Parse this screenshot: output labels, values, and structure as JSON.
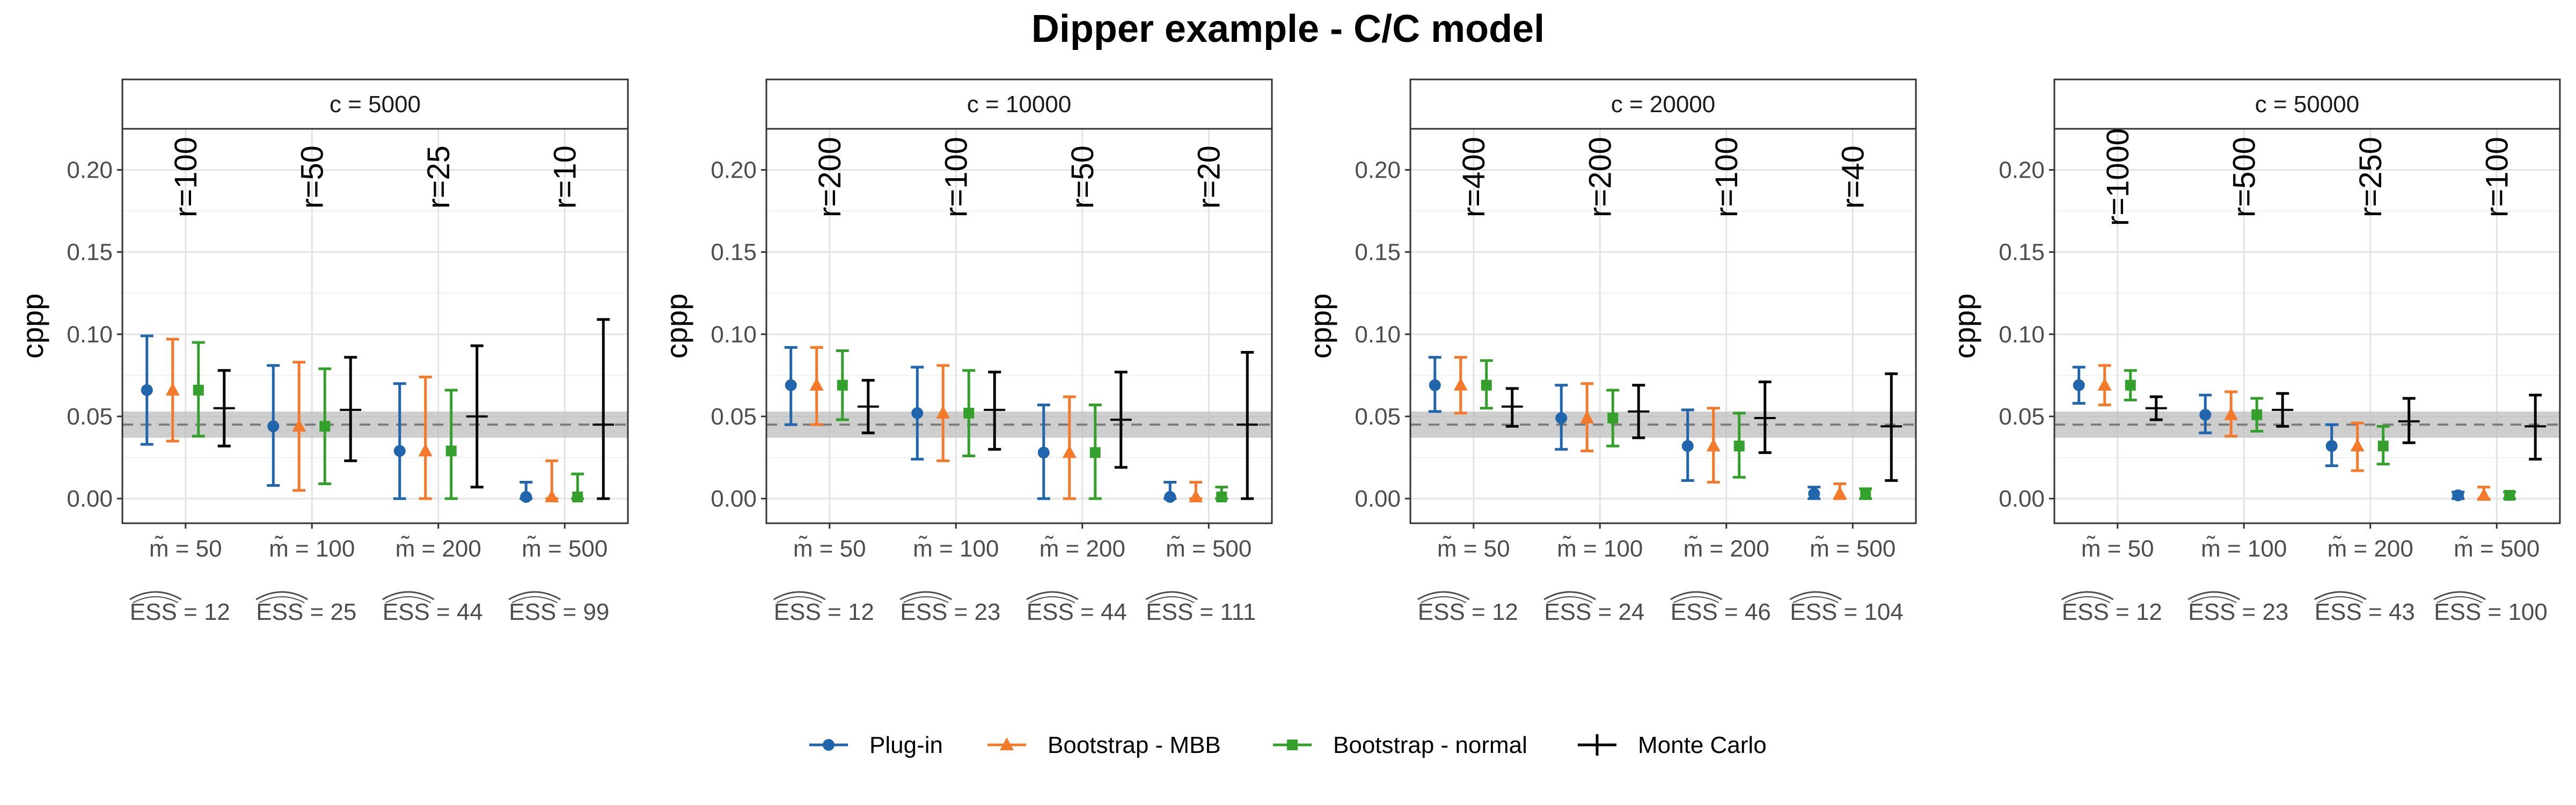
{
  "chart_data": {
    "type": "errorbar",
    "title": "Dipper example - C/C model",
    "ylabel": "cppp",
    "ylim": [
      -0.015,
      0.225
    ],
    "yticks": [
      "0.00",
      "0.05",
      "0.10",
      "0.15",
      "0.20"
    ],
    "reference_line": {
      "value": 0.045,
      "band": [
        0.037,
        0.053
      ],
      "style": "dashed"
    },
    "grid": true,
    "legend_position": "bottom",
    "series": [
      {
        "name": "Plug-in",
        "color": "#2166ac",
        "marker": "circle"
      },
      {
        "name": "Bootstrap - MBB",
        "color": "#f4792a",
        "marker": "triangle"
      },
      {
        "name": "Bootstrap - normal",
        "color": "#33a02c",
        "marker": "square"
      },
      {
        "name": "Monte Carlo",
        "color": "#000000",
        "marker": "plus"
      }
    ],
    "panels": [
      {
        "strip": "c = 5000",
        "x_labels": [
          "m̃ = 50",
          "m̃ = 100",
          "m̃ = 200",
          "m̃ = 500"
        ],
        "ess_labels": [
          "ESS = 12",
          "ESS = 25",
          "ESS = 44",
          "ESS = 99"
        ],
        "r_labels": [
          "r=100",
          "r=50",
          "r=25",
          "r=10"
        ],
        "groups": [
          [
            [
              0.066,
              0.033,
              0.099
            ],
            [
              0.066,
              0.035,
              0.097
            ],
            [
              0.066,
              0.038,
              0.095
            ],
            [
              0.055,
              0.032,
              0.078
            ]
          ],
          [
            [
              0.044,
              0.008,
              0.081
            ],
            [
              0.044,
              0.005,
              0.083
            ],
            [
              0.044,
              0.009,
              0.079
            ],
            [
              0.054,
              0.023,
              0.086
            ]
          ],
          [
            [
              0.029,
              0.0,
              0.07
            ],
            [
              0.029,
              0.0,
              0.074
            ],
            [
              0.029,
              0.0,
              0.066
            ],
            [
              0.05,
              0.007,
              0.093
            ]
          ],
          [
            [
              0.001,
              0.0,
              0.01
            ],
            [
              0.001,
              0.0,
              0.023
            ],
            [
              0.001,
              0.0,
              0.015
            ],
            [
              0.045,
              0.0,
              0.109
            ]
          ]
        ]
      },
      {
        "strip": "c = 10000",
        "x_labels": [
          "m̃ = 50",
          "m̃ = 100",
          "m̃ = 200",
          "m̃ = 500"
        ],
        "ess_labels": [
          "ESS = 12",
          "ESS = 23",
          "ESS = 44",
          "ESS = 111"
        ],
        "r_labels": [
          "r=200",
          "r=100",
          "r=50",
          "r=20"
        ],
        "groups": [
          [
            [
              0.069,
              0.045,
              0.092
            ],
            [
              0.069,
              0.045,
              0.092
            ],
            [
              0.069,
              0.048,
              0.09
            ],
            [
              0.056,
              0.04,
              0.072
            ]
          ],
          [
            [
              0.052,
              0.024,
              0.08
            ],
            [
              0.052,
              0.023,
              0.081
            ],
            [
              0.052,
              0.026,
              0.078
            ],
            [
              0.054,
              0.03,
              0.077
            ]
          ],
          [
            [
              0.028,
              0.0,
              0.057
            ],
            [
              0.028,
              0.0,
              0.062
            ],
            [
              0.028,
              0.0,
              0.057
            ],
            [
              0.048,
              0.019,
              0.077
            ]
          ],
          [
            [
              0.001,
              0.0,
              0.01
            ],
            [
              0.001,
              0.0,
              0.01
            ],
            [
              0.001,
              0.0,
              0.007
            ],
            [
              0.045,
              0.0,
              0.089
            ]
          ]
        ]
      },
      {
        "strip": "c = 20000",
        "x_labels": [
          "m̃ = 50",
          "m̃ = 100",
          "m̃ = 200",
          "m̃ = 500"
        ],
        "ess_labels": [
          "ESS = 12",
          "ESS = 24",
          "ESS = 46",
          "ESS = 104"
        ],
        "r_labels": [
          "r=400",
          "r=200",
          "r=100",
          "r=40"
        ],
        "groups": [
          [
            [
              0.069,
              0.053,
              0.086
            ],
            [
              0.069,
              0.052,
              0.086
            ],
            [
              0.069,
              0.055,
              0.084
            ],
            [
              0.056,
              0.044,
              0.067
            ]
          ],
          [
            [
              0.049,
              0.03,
              0.069
            ],
            [
              0.049,
              0.029,
              0.07
            ],
            [
              0.049,
              0.032,
              0.066
            ],
            [
              0.053,
              0.037,
              0.069
            ]
          ],
          [
            [
              0.032,
              0.011,
              0.054
            ],
            [
              0.032,
              0.01,
              0.055
            ],
            [
              0.032,
              0.013,
              0.052
            ],
            [
              0.049,
              0.028,
              0.071
            ]
          ],
          [
            [
              0.003,
              0.0,
              0.007
            ],
            [
              0.003,
              0.0,
              0.009
            ],
            [
              0.003,
              0.0,
              0.006
            ],
            [
              0.044,
              0.011,
              0.076
            ]
          ]
        ]
      },
      {
        "strip": "c = 50000",
        "x_labels": [
          "m̃ = 50",
          "m̃ = 100",
          "m̃ = 200",
          "m̃ = 500"
        ],
        "ess_labels": [
          "ESS = 12",
          "ESS = 23",
          "ESS = 43",
          "ESS = 100"
        ],
        "r_labels": [
          "r=1000",
          "r=500",
          "r=250",
          "r=100"
        ],
        "groups": [
          [
            [
              0.069,
              0.058,
              0.08
            ],
            [
              0.069,
              0.057,
              0.081
            ],
            [
              0.069,
              0.06,
              0.078
            ],
            [
              0.055,
              0.048,
              0.062
            ]
          ],
          [
            [
              0.051,
              0.04,
              0.063
            ],
            [
              0.051,
              0.038,
              0.065
            ],
            [
              0.051,
              0.041,
              0.061
            ],
            [
              0.054,
              0.044,
              0.064
            ]
          ],
          [
            [
              0.032,
              0.02,
              0.045
            ],
            [
              0.032,
              0.017,
              0.046
            ],
            [
              0.032,
              0.021,
              0.044
            ],
            [
              0.047,
              0.034,
              0.061
            ]
          ],
          [
            [
              0.002,
              0.0,
              0.004
            ],
            [
              0.002,
              0.0,
              0.007
            ],
            [
              0.002,
              0.0,
              0.004
            ],
            [
              0.044,
              0.024,
              0.063
            ]
          ]
        ]
      }
    ]
  }
}
